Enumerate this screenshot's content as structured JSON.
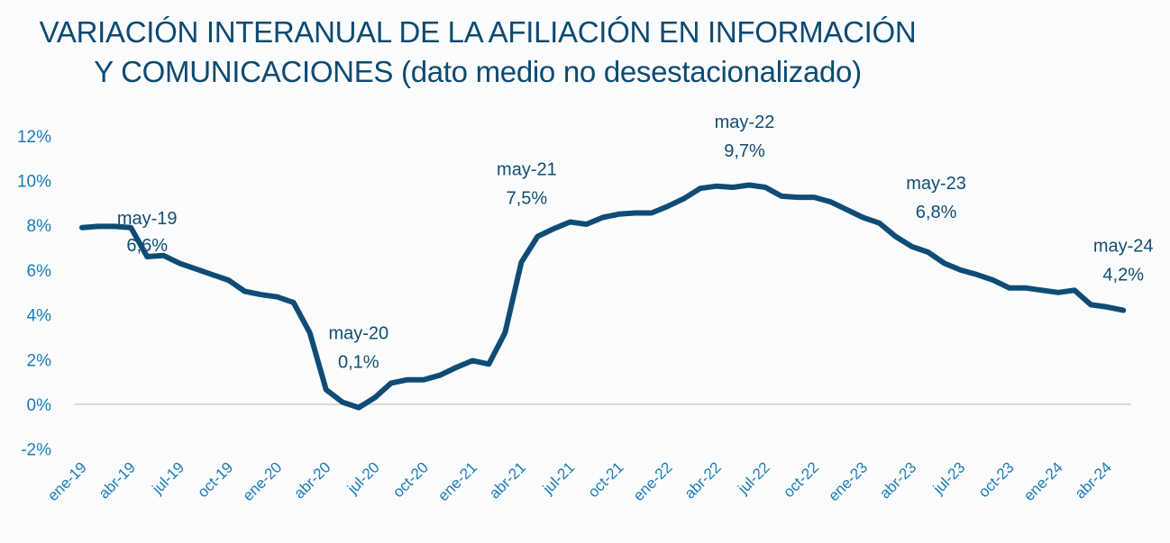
{
  "chart_data": {
    "type": "line",
    "title": "VARIACIÓN INTERANUAL DE LA AFILIACIÓN EN INFORMACIÓN Y COMUNICACIONES (dato medio no desestacionalizado)",
    "title_lines": [
      "VARIACIÓN INTERANUAL DE LA AFILIACIÓN EN INFORMACIÓN",
      "Y COMUNICACIONES (dato medio no desestacionalizado)"
    ],
    "xlabel": "",
    "ylabel": "",
    "ylim": [
      -2,
      12
    ],
    "y_ticks": [
      -2,
      0,
      2,
      4,
      6,
      8,
      10,
      12
    ],
    "y_tick_labels": [
      "-2%",
      "0%",
      "2%",
      "4%",
      "6%",
      "8%",
      "10%",
      "12%"
    ],
    "grid": "zero line only",
    "legend": "none",
    "line_color": "#0f4c75",
    "x": [
      "ene-19",
      "feb-19",
      "mar-19",
      "abr-19",
      "may-19",
      "jun-19",
      "jul-19",
      "ago-19",
      "sep-19",
      "oct-19",
      "nov-19",
      "dic-19",
      "ene-20",
      "feb-20",
      "mar-20",
      "abr-20",
      "may-20",
      "jun-20",
      "jul-20",
      "ago-20",
      "sep-20",
      "oct-20",
      "nov-20",
      "dic-20",
      "ene-21",
      "feb-21",
      "mar-21",
      "abr-21",
      "may-21",
      "jun-21",
      "jul-21",
      "ago-21",
      "sep-21",
      "oct-21",
      "nov-21",
      "dic-21",
      "ene-22",
      "feb-22",
      "mar-22",
      "abr-22",
      "may-22",
      "jun-22",
      "jul-22",
      "ago-22",
      "sep-22",
      "oct-22",
      "nov-22",
      "dic-22",
      "ene-23",
      "feb-23",
      "mar-23",
      "abr-23",
      "may-23",
      "jun-23",
      "jul-23",
      "ago-23",
      "sep-23",
      "oct-23",
      "nov-23",
      "dic-23",
      "ene-24",
      "feb-24",
      "mar-24",
      "abr-24",
      "may-24"
    ],
    "x_tick_labels": [
      "ene-19",
      "abr-19",
      "jul-19",
      "oct-19",
      "ene-20",
      "abr-20",
      "jul-20",
      "oct-20",
      "ene-21",
      "abr-21",
      "jul-21",
      "oct-21",
      "ene-22",
      "abr-22",
      "jul-22",
      "oct-22",
      "ene-23",
      "abr-23",
      "jul-23",
      "oct-23",
      "ene-24",
      "abr-24"
    ],
    "series": [
      {
        "name": "Variación interanual afiliación",
        "values": [
          7.9,
          7.95,
          7.95,
          7.9,
          6.6,
          6.65,
          6.3,
          6.05,
          5.8,
          5.55,
          5.05,
          4.9,
          4.8,
          4.55,
          3.2,
          0.65,
          0.1,
          -0.15,
          0.3,
          0.95,
          1.1,
          1.1,
          1.3,
          1.65,
          1.95,
          1.8,
          3.2,
          6.35,
          7.5,
          7.85,
          8.15,
          8.05,
          8.35,
          8.5,
          8.55,
          8.55,
          8.85,
          9.2,
          9.65,
          9.75,
          9.7,
          9.8,
          9.7,
          9.3,
          9.25,
          9.25,
          9.05,
          8.7,
          8.35,
          8.1,
          7.5,
          7.05,
          6.8,
          6.3,
          6.0,
          5.8,
          5.55,
          5.2,
          5.2,
          5.1,
          5.0,
          5.1,
          4.45,
          4.35,
          4.2
        ]
      }
    ],
    "annotations": [
      {
        "month": "may-19",
        "label": "may-19",
        "value": "6,6%"
      },
      {
        "month": "may-20",
        "label": "may-20",
        "value": "0,1%"
      },
      {
        "month": "may-21",
        "label": "may-21",
        "value": "7,5%"
      },
      {
        "month": "may-22",
        "label": "may-22",
        "value": "9,7%"
      },
      {
        "month": "may-23",
        "label": "may-23",
        "value": "6,8%"
      },
      {
        "month": "may-24",
        "label": "may-24",
        "value": "4,2%"
      }
    ]
  }
}
